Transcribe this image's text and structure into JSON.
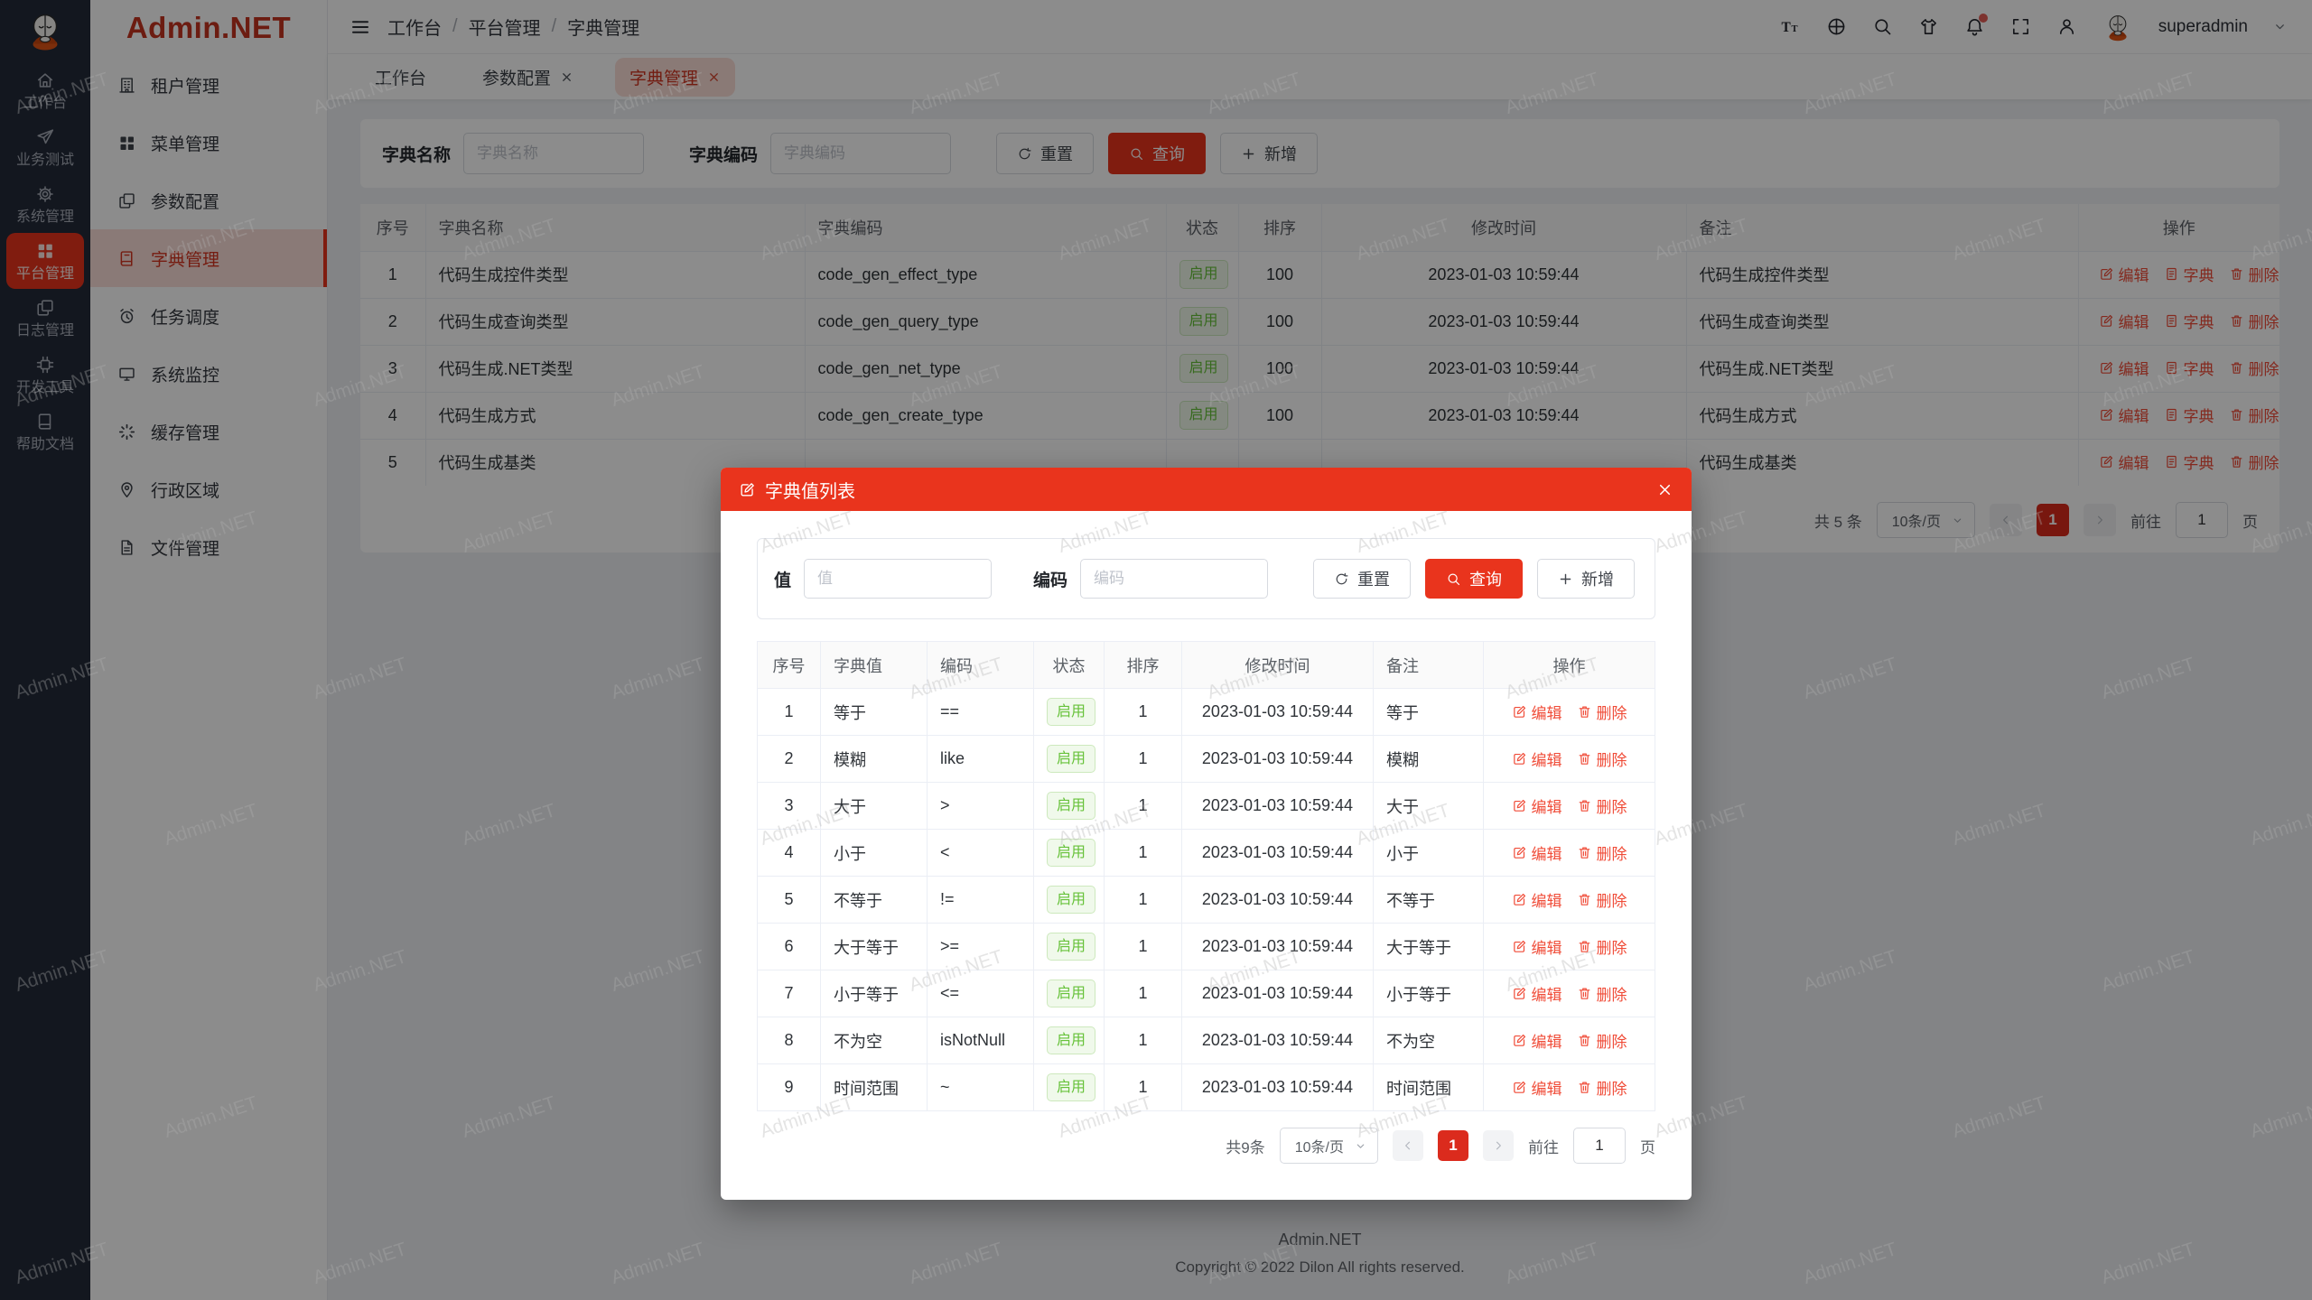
{
  "brand": {
    "logo_text": "Admin.NET"
  },
  "rail": {
    "items": [
      {
        "label": "工作台",
        "icon": "home",
        "active": false
      },
      {
        "label": "业务测试",
        "icon": "send",
        "active": false
      },
      {
        "label": "系统管理",
        "icon": "gear",
        "active": false
      },
      {
        "label": "平台管理",
        "icon": "grid",
        "active": true
      },
      {
        "label": "日志管理",
        "icon": "copy",
        "active": false
      },
      {
        "label": "开发工具",
        "icon": "chip",
        "active": false
      },
      {
        "label": "帮助文档",
        "icon": "book",
        "active": false
      }
    ]
  },
  "sidebar": {
    "items": [
      {
        "label": "租户管理",
        "icon": "building",
        "active": false
      },
      {
        "label": "菜单管理",
        "icon": "grid",
        "active": false
      },
      {
        "label": "参数配置",
        "icon": "copy",
        "active": false
      },
      {
        "label": "字典管理",
        "icon": "dictbook",
        "active": true
      },
      {
        "label": "任务调度",
        "icon": "alarm",
        "active": false
      },
      {
        "label": "系统监控",
        "icon": "monitor",
        "active": false
      },
      {
        "label": "缓存管理",
        "icon": "spinner",
        "active": false
      },
      {
        "label": "行政区域",
        "icon": "location",
        "active": false
      },
      {
        "label": "文件管理",
        "icon": "file",
        "active": false
      }
    ]
  },
  "header": {
    "breadcrumb": [
      "工作台",
      "平台管理",
      "字典管理"
    ],
    "separator": "/",
    "username": "superadmin"
  },
  "tabs": [
    {
      "label": "工作台",
      "closable": false,
      "active": false
    },
    {
      "label": "参数配置",
      "closable": true,
      "active": false
    },
    {
      "label": "字典管理",
      "closable": true,
      "active": true
    }
  ],
  "toolbar": {
    "name_label": "字典名称",
    "name_placeholder": "字典名称",
    "code_label": "字典编码",
    "code_placeholder": "字典编码",
    "reset_label": "重置",
    "search_label": "查询",
    "add_label": "新增"
  },
  "dict_table": {
    "headers": [
      "序号",
      "字典名称",
      "字典编码",
      "状态",
      "排序",
      "修改时间",
      "备注",
      "操作"
    ],
    "op_labels": [
      "编辑",
      "字典",
      "删除"
    ],
    "rows": [
      {
        "index": "1",
        "name": "代码生成控件类型",
        "code": "code_gen_effect_type",
        "status": "启用",
        "sort": "100",
        "time": "2023-01-03 10:59:44",
        "note": "代码生成控件类型"
      },
      {
        "index": "2",
        "name": "代码生成查询类型",
        "code": "code_gen_query_type",
        "status": "启用",
        "sort": "100",
        "time": "2023-01-03 10:59:44",
        "note": "代码生成查询类型"
      },
      {
        "index": "3",
        "name": "代码生成.NET类型",
        "code": "code_gen_net_type",
        "status": "启用",
        "sort": "100",
        "time": "2023-01-03 10:59:44",
        "note": "代码生成.NET类型"
      },
      {
        "index": "4",
        "name": "代码生成方式",
        "code": "code_gen_create_type",
        "status": "启用",
        "sort": "100",
        "time": "2023-01-03 10:59:44",
        "note": "代码生成方式"
      },
      {
        "index": "5",
        "name": "代码生成基类",
        "code": "",
        "status": "",
        "sort": "",
        "time": "",
        "note": "代码生成基类"
      }
    ]
  },
  "pagination": {
    "total": "共 5 条",
    "page_size": "10条/页",
    "current_page": "1",
    "goto_label": "前往",
    "goto_value": "1",
    "unit_label": "页"
  },
  "modal": {
    "title": "字典值列表",
    "toolbar": {
      "value_label": "值",
      "value_placeholder": "值",
      "code_label": "编码",
      "code_placeholder": "编码",
      "reset_label": "重置",
      "search_label": "查询",
      "add_label": "新增"
    },
    "table": {
      "headers": [
        "序号",
        "字典值",
        "编码",
        "状态",
        "排序",
        "修改时间",
        "备注",
        "操作"
      ],
      "op_labels": [
        "编辑",
        "删除"
      ],
      "rows": [
        {
          "index": "1",
          "value": "等于",
          "code": "==",
          "status": "启用",
          "sort": "1",
          "time": "2023-01-03 10:59:44",
          "note": "等于"
        },
        {
          "index": "2",
          "value": "模糊",
          "code": "like",
          "status": "启用",
          "sort": "1",
          "time": "2023-01-03 10:59:44",
          "note": "模糊"
        },
        {
          "index": "3",
          "value": "大于",
          "code": ">",
          "status": "启用",
          "sort": "1",
          "time": "2023-01-03 10:59:44",
          "note": "大于"
        },
        {
          "index": "4",
          "value": "小于",
          "code": "<",
          "status": "启用",
          "sort": "1",
          "time": "2023-01-03 10:59:44",
          "note": "小于"
        },
        {
          "index": "5",
          "value": "不等于",
          "code": "!=",
          "status": "启用",
          "sort": "1",
          "time": "2023-01-03 10:59:44",
          "note": "不等于"
        },
        {
          "index": "6",
          "value": "大于等于",
          "code": ">=",
          "status": "启用",
          "sort": "1",
          "time": "2023-01-03 10:59:44",
          "note": "大于等于"
        },
        {
          "index": "7",
          "value": "小于等于",
          "code": "<=",
          "status": "启用",
          "sort": "1",
          "time": "2023-01-03 10:59:44",
          "note": "小于等于"
        },
        {
          "index": "8",
          "value": "不为空",
          "code": "isNotNull",
          "status": "启用",
          "sort": "1",
          "time": "2023-01-03 10:59:44",
          "note": "不为空"
        },
        {
          "index": "9",
          "value": "时间范围",
          "code": "~",
          "status": "启用",
          "sort": "1",
          "time": "2023-01-03 10:59:44",
          "note": "时间范围"
        }
      ]
    },
    "pagination": {
      "total": "共9条",
      "page_size": "10条/页",
      "current_page": "1",
      "goto_label": "前往",
      "goto_value": "1",
      "unit_label": "页"
    }
  },
  "footer": {
    "line1": "Admin.NET",
    "line2": "Copyright © 2022 Dilon All rights reserved."
  },
  "watermark": {
    "text": "Admin.NET"
  },
  "colors": {
    "primary": "#e9341d",
    "success_text": "#67c23a",
    "success_bg": "#f0f9eb",
    "rail_bg": "#232b3a"
  }
}
